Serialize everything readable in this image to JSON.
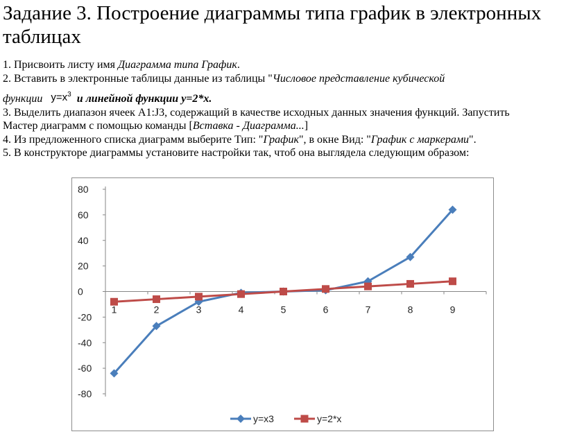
{
  "title": "Задание 3. Построение диаграммы типа график в электронных таблицах",
  "steps": {
    "s1_prefix": "1. Присвоить листу имя ",
    "s1_italic": "Диаграмма типа График",
    "s1_suffix": ".",
    "s2_prefix": "2. Вставить в электронные таблицы данные из таблицы \"",
    "s2_italic": "Числовое представление кубической",
    "s2_line2_italic": "функции",
    "formula_base": "y=x",
    "formula_exp": "3",
    "s2_bold_italic": "и линейной функции y=2*x",
    "s2_end": ".",
    "s3": "3. Выделить диапазон ячеек А1:J3, содержащий в качестве исходных данных значения функций. Запустить",
    "s3_line2_prefix": "Мастер диаграмм с помощью команды [",
    "s3_line2_italic": "Вставка - Диаграмма...",
    "s3_line2_suffix": "]",
    "s4_prefix": "4. Из предложенного списка диаграмм выберите Тип: \"",
    "s4_italic1": "График",
    "s4_mid": "\", в окне Вид: \"",
    "s4_italic2": "График с маркерами",
    "s4_suffix": "\".",
    "s5": "5. В конструкторе диаграммы установите настройки так, чтоб она выглядела следующим образом:"
  },
  "chart_data": {
    "type": "line",
    "categories": [
      "1",
      "2",
      "3",
      "4",
      "5",
      "6",
      "7",
      "8",
      "9"
    ],
    "series": [
      {
        "name": "y=x3",
        "values": [
          -64,
          -27,
          -8,
          -1,
          0,
          1,
          8,
          27,
          64
        ],
        "color": "#4a7ebb",
        "marker": "diamond"
      },
      {
        "name": "y=2*x",
        "values": [
          -8,
          -6,
          -4,
          -2,
          0,
          2,
          4,
          6,
          8
        ],
        "color": "#be4b48",
        "marker": "square"
      }
    ],
    "y_ticks": [
      "80",
      "60",
      "40",
      "20",
      "0",
      "-20",
      "-40",
      "-60",
      "-80"
    ],
    "ylim": [
      -80,
      80
    ],
    "legend_position": "bottom",
    "grid": false
  }
}
